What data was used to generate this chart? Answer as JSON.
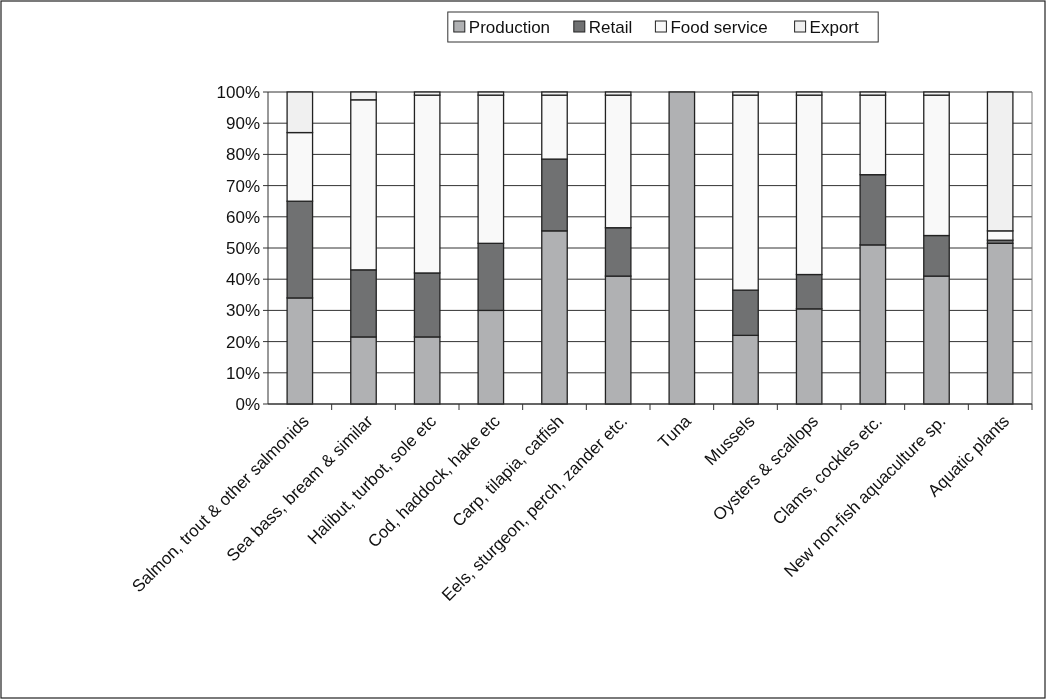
{
  "chart_data": {
    "type": "bar",
    "stacked": true,
    "categories": [
      "Salmon, trout & other salmonids",
      "Sea bass, bream & similar",
      "Halibut, turbot, sole etc",
      "Cod, haddock, hake etc",
      "Carp, tilapia, catfish",
      "Eels, sturgeon, perch, zander etc.",
      "Tuna",
      "Mussels",
      "Oysters & scallops",
      "Clams, cockles etc.",
      "New non-fish aquaculture sp.",
      "Aquatic plants"
    ],
    "series": [
      {
        "name": "Production",
        "color": "#b0b1b3",
        "values": [
          34,
          21.5,
          21.5,
          30,
          55.5,
          41,
          100,
          22,
          30.5,
          51,
          41,
          51.5
        ]
      },
      {
        "name": "Retail",
        "color": "#707172",
        "values": [
          31,
          21.5,
          20.5,
          21.5,
          23,
          15.5,
          0,
          14.5,
          11,
          22.5,
          13,
          1
        ]
      },
      {
        "name": "Food service",
        "color": "#f9f9f9",
        "values": [
          22,
          54.5,
          57,
          47.5,
          20.5,
          42.5,
          0,
          62.5,
          57.5,
          25.5,
          45,
          3
        ]
      },
      {
        "name": "Export",
        "color": "#f0f0f0",
        "values": [
          13,
          2.5,
          1,
          1,
          1,
          1,
          0,
          1,
          1,
          1,
          1,
          44.5
        ]
      }
    ],
    "ylim": [
      0,
      100
    ],
    "yticks": [
      {
        "value": 0,
        "label": "0%"
      },
      {
        "value": 10,
        "label": "10%"
      },
      {
        "value": 20,
        "label": "20%"
      },
      {
        "value": 30,
        "label": "30%"
      },
      {
        "value": 40,
        "label": "40%"
      },
      {
        "value": 50,
        "label": "50%"
      },
      {
        "value": 60,
        "label": "60%"
      },
      {
        "value": 70,
        "label": "70%"
      },
      {
        "value": 80,
        "label": "80%"
      },
      {
        "value": 90,
        "label": "90%"
      },
      {
        "value": 100,
        "label": "100%"
      }
    ],
    "grid": "y",
    "legend": "top"
  }
}
